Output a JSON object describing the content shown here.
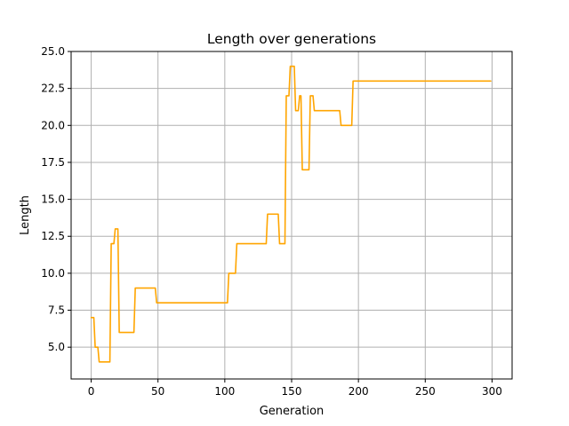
{
  "chart_data": {
    "type": "line",
    "title": "Length over generations",
    "xlabel": "Generation",
    "ylabel": "Length",
    "xlim": [
      -15,
      315
    ],
    "ylim": [
      2.85,
      25.0
    ],
    "xticks": [
      0,
      50,
      100,
      150,
      200,
      250,
      300
    ],
    "yticks": [
      5.0,
      7.5,
      10.0,
      12.5,
      15.0,
      17.5,
      20.0,
      22.5,
      25.0
    ],
    "xtick_labels": [
      "0",
      "50",
      "100",
      "150",
      "200",
      "250",
      "300"
    ],
    "ytick_labels": [
      "5.0",
      "7.5",
      "10.0",
      "12.5",
      "15.0",
      "17.5",
      "20.0",
      "22.5",
      "25.0"
    ],
    "grid": true,
    "line_color": "#ffa500",
    "series": [
      {
        "x": [
          0,
          2,
          3,
          5,
          6,
          14,
          15,
          17,
          18,
          20,
          21,
          32,
          33,
          48,
          49,
          102,
          103,
          108,
          109,
          131,
          132,
          140,
          141,
          145,
          146,
          148,
          149,
          152,
          153,
          155,
          156,
          157,
          158,
          163,
          164,
          166,
          167,
          186,
          187,
          195,
          196,
          299
        ],
        "y": [
          7,
          7,
          5,
          5,
          4,
          4,
          12,
          12,
          13,
          13,
          6,
          6,
          9,
          9,
          8,
          8,
          10,
          10,
          12,
          12,
          14,
          14,
          12,
          12,
          22,
          22,
          24,
          24,
          21,
          21,
          22,
          22,
          17,
          17,
          22,
          22,
          21,
          21,
          20,
          20,
          23,
          23
        ]
      }
    ]
  }
}
